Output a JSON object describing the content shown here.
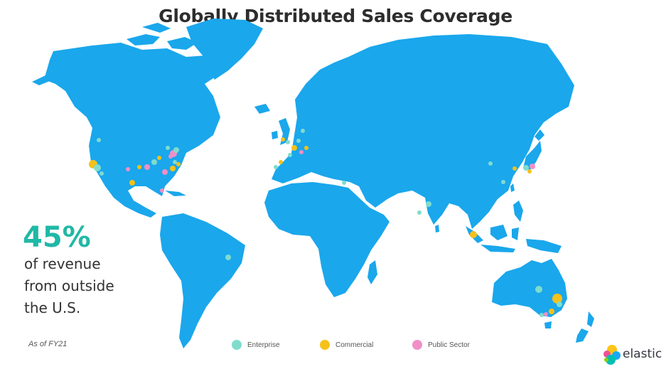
{
  "title": "Globally Distributed Sales Coverage",
  "stat": {
    "value": "45%",
    "lines": [
      "of revenue",
      "from outside",
      "the U.S."
    ]
  },
  "as_of": "As of FY21",
  "colors": {
    "land": "#1aa7ec",
    "accent": "#20b8a6",
    "enterprise": "#7fdccd",
    "commercial": "#f5c11a",
    "public_sector": "#f08fc8"
  },
  "legend": [
    {
      "label": "Enterprise",
      "color": "#7fdccd"
    },
    {
      "label": "Commercial",
      "color": "#f5c11a"
    },
    {
      "label": "Public Sector",
      "color": "#f08fc8"
    }
  ],
  "logo": {
    "text": "elastic"
  }
}
